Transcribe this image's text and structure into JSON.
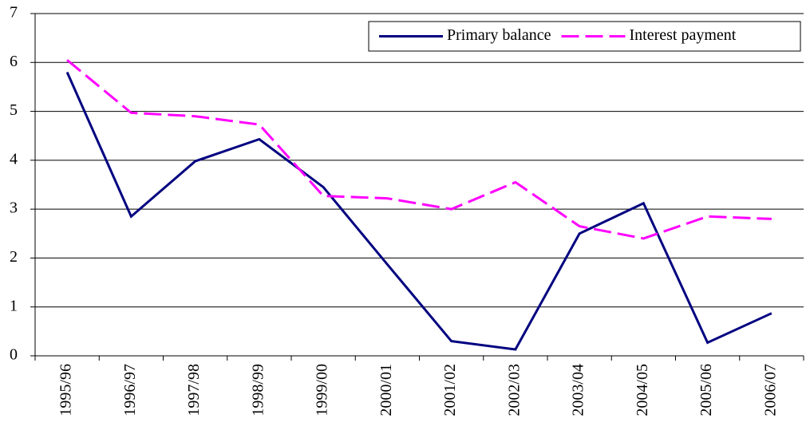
{
  "chart_data": {
    "type": "line",
    "categories": [
      "1995/96",
      "1996/97",
      "1997/98",
      "1998/99",
      "1999/00",
      "2000/01",
      "2001/02",
      "2002/03",
      "2003/04",
      "2004/05",
      "2005/06",
      "2006/07"
    ],
    "series": [
      {
        "name": "Primary balance",
        "color": "#000080",
        "dashed": false,
        "values": [
          5.8,
          2.85,
          3.98,
          4.43,
          3.45,
          1.87,
          0.3,
          0.13,
          2.5,
          3.12,
          0.27,
          0.87
        ]
      },
      {
        "name": "Interest payment",
        "color": "#ff00ff",
        "dashed": true,
        "values": [
          6.05,
          4.97,
          4.9,
          4.73,
          3.27,
          3.22,
          3.0,
          3.55,
          2.65,
          2.4,
          2.85,
          2.8
        ]
      }
    ],
    "ylim": [
      0,
      7
    ],
    "yticks": [
      0,
      1,
      2,
      3,
      4,
      5,
      6,
      7
    ],
    "grid": true,
    "legend": "upper right"
  }
}
